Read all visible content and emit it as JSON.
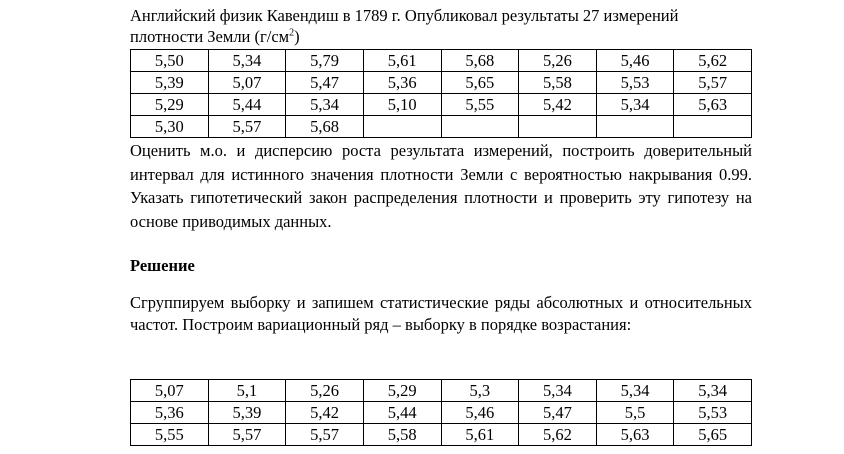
{
  "intro": {
    "text": "Английский физик Кавендиш в 1789 г. Опубликовал результаты 27 измерений плотности Земли (г/см",
    "superscript": "2",
    "closing": ")"
  },
  "table1": {
    "rows": [
      [
        "5,50",
        "5,34",
        "5,79",
        "5,61",
        "5,68",
        "5,26",
        "5,46",
        "5,62"
      ],
      [
        "5,39",
        "5,07",
        "5,47",
        "5,36",
        "5,65",
        "5,58",
        "5,53",
        "5,57"
      ],
      [
        "5,29",
        "5,44",
        "5,34",
        "5,10",
        "5,55",
        "5,42",
        "5,34",
        "5,63"
      ],
      [
        "5,30",
        "5,57",
        "5,68"
      ]
    ]
  },
  "task": "Оценить м.о. и дисперсию роста результата измерений, построить доверительный интервал для истинного значения плотности Земли с вероятностью накрывания 0.99. Указать гипотетический закон распределения плотности и проверить эту гипотезу на основе приводимых данных.",
  "solution_heading": "Решение",
  "solution_text": "Сгруппируем выборку и запишем статистические ряды абсолютных и относительных частот. Построим вариационный ряд – выборку в порядке возрастания:",
  "table2": {
    "rows": [
      [
        "5,07",
        "5,1",
        "5,26",
        "5,29",
        "5,3",
        "5,34",
        "5,34",
        "5,34"
      ],
      [
        "5,36",
        "5,39",
        "5,42",
        "5,44",
        "5,46",
        "5,47",
        "5,5",
        "5,53"
      ],
      [
        "5,55",
        "5,57",
        "5,57",
        "5,58",
        "5,61",
        "5,62",
        "5,63",
        "5,65"
      ]
    ]
  }
}
